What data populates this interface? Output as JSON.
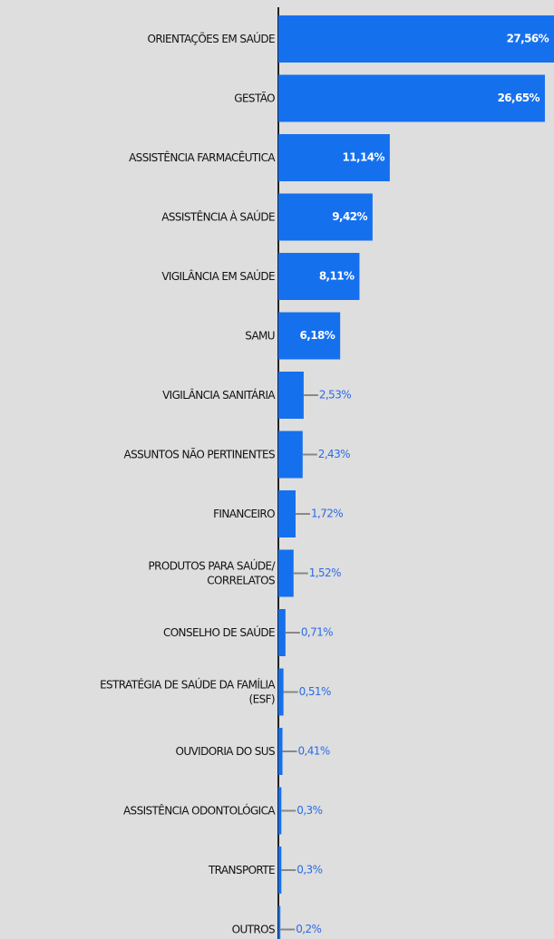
{
  "chart_data": {
    "type": "barh",
    "categories": [
      "ORIENTAÇÕES EM SAÚDE",
      "GESTÃO",
      "ASSISTÊNCIA FARMACÊUTICA",
      "ASSISTÊNCIA À SAÚDE",
      "VIGILÂNCIA EM SAÚDE",
      "SAMU",
      "VIGILÂNCIA SANITÁRIA",
      "ASSUNTOS NÃO PERTINENTES",
      "FINANCEIRO",
      "PRODUTOS PARA SAÚDE/\nCORRELATOS",
      "CONSELHO DE SAÚDE",
      "ESTRATÉGIA DE SAÚDE DA FAMÍLIA\n(ESF)",
      "OUVIDORIA DO SUS",
      "ASSISTÊNCIA ODONTOLÓGICA",
      "TRANSPORTE",
      "OUTROS"
    ],
    "values": [
      27.56,
      26.65,
      11.14,
      9.42,
      8.11,
      6.18,
      2.53,
      2.43,
      1.72,
      1.52,
      0.71,
      0.51,
      0.41,
      0.3,
      0.3,
      0.2
    ],
    "value_labels": [
      "27,56%",
      "26,65%",
      "11,14%",
      "9,42%",
      "8,11%",
      "6,18%",
      "2,53%",
      "2,43%",
      "1,72%",
      "1,52%",
      "0,71%",
      "0,51%",
      "0,41%",
      "0,3%",
      "0,3%",
      "0,2%"
    ],
    "color": "#1570ee",
    "xlim": [
      0,
      27.56
    ]
  }
}
